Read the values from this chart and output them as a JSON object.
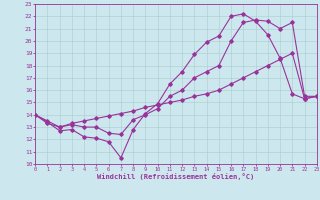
{
  "background_color": "#cce8ee",
  "line_color": "#993399",
  "xlabel": "Windchill (Refroidissement éolien,°C)",
  "xlim": [
    0,
    23
  ],
  "ylim": [
    10,
    23
  ],
  "xticks": [
    0,
    1,
    2,
    3,
    4,
    5,
    6,
    7,
    8,
    9,
    10,
    11,
    12,
    13,
    14,
    15,
    16,
    17,
    18,
    19,
    20,
    21,
    22,
    23
  ],
  "yticks": [
    10,
    11,
    12,
    13,
    14,
    15,
    16,
    17,
    18,
    19,
    20,
    21,
    22,
    23
  ],
  "line1_x": [
    0,
    1,
    2,
    3,
    4,
    5,
    6,
    7,
    8,
    9,
    10,
    11,
    12,
    13,
    14,
    15,
    16,
    17,
    18,
    19,
    20,
    21,
    22,
    23
  ],
  "line1_y": [
    14.0,
    13.4,
    12.7,
    12.8,
    12.2,
    12.1,
    11.8,
    10.5,
    12.8,
    14.1,
    14.9,
    16.5,
    17.5,
    18.9,
    19.9,
    20.4,
    22.0,
    22.2,
    21.6,
    20.5,
    18.6,
    15.7,
    15.3,
    15.5
  ],
  "line2_x": [
    0,
    1,
    2,
    3,
    4,
    5,
    6,
    7,
    8,
    9,
    10,
    11,
    12,
    13,
    14,
    15,
    16,
    17,
    18,
    19,
    20,
    21,
    22,
    23
  ],
  "line2_y": [
    14.0,
    13.5,
    13.0,
    13.2,
    13.0,
    13.0,
    12.5,
    12.4,
    13.6,
    14.0,
    14.5,
    15.5,
    16.0,
    17.0,
    17.5,
    18.0,
    20.0,
    21.5,
    21.7,
    21.6,
    21.0,
    21.5,
    15.5,
    15.5
  ],
  "line3_x": [
    0,
    1,
    2,
    3,
    4,
    5,
    6,
    7,
    8,
    9,
    10,
    11,
    12,
    13,
    14,
    15,
    16,
    17,
    18,
    19,
    20,
    21,
    22,
    23
  ],
  "line3_y": [
    14.0,
    13.3,
    13.0,
    13.3,
    13.5,
    13.7,
    13.9,
    14.1,
    14.3,
    14.6,
    14.8,
    15.0,
    15.2,
    15.5,
    15.7,
    16.0,
    16.5,
    17.0,
    17.5,
    18.0,
    18.5,
    19.0,
    15.3,
    15.5
  ]
}
